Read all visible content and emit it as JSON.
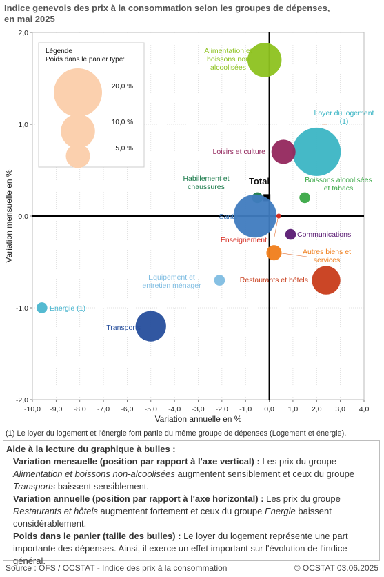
{
  "title_line1": "Indice genevois des prix à la consommation selon les groupes de dépenses,",
  "title_line2": "en mai 2025",
  "chart_data": {
    "type": "scatter",
    "xlabel": "Variation annuelle en %",
    "ylabel": "Variation mensuelle en %",
    "xlim": [
      -10,
      4
    ],
    "ylim": [
      -2,
      2
    ],
    "xticks": [
      "-10,0",
      "-9,0",
      "-8,0",
      "-7,0",
      "-6,0",
      "-5,0",
      "-4,0",
      "-3,0",
      "-2,0",
      "-1,0",
      "0,0",
      "1,0",
      "2,0",
      "3,0",
      "4,0"
    ],
    "yticks": [
      "2,0",
      "1,0",
      "0,0",
      "-1,0",
      "-2,0"
    ],
    "legend": {
      "title": "Légende",
      "subtitle": "Poids dans le panier type:",
      "entries": [
        {
          "label": "20,0 %",
          "weight": 20
        },
        {
          "label": "10,0 %",
          "weight": 10
        },
        {
          "label": "5,0 %",
          "weight": 5
        }
      ]
    },
    "points": [
      {
        "name": "Alimentation et boissons non alcoolisées",
        "x": -0.2,
        "y": 1.7,
        "weight": 10,
        "color": "#8dc21f"
      },
      {
        "name": "Loyer du logement (1)",
        "x": 2.0,
        "y": 0.7,
        "weight": 20,
        "color": "#3bb5c4"
      },
      {
        "name": "Loisirs et culture",
        "x": 0.6,
        "y": 0.7,
        "weight": 5,
        "color": "#93275d"
      },
      {
        "name": "Habillement et chaussures",
        "x": -0.5,
        "y": 0.2,
        "weight": 1,
        "color": "#1a7a4a"
      },
      {
        "name": "Boissons alcoolisées et tabacs",
        "x": 1.5,
        "y": 0.2,
        "weight": 1,
        "color": "#3aa846"
      },
      {
        "name": "Total",
        "x": -0.1,
        "y": 0.2,
        "weight": 0,
        "color": "#000000"
      },
      {
        "name": "Santé",
        "x": -0.6,
        "y": 0.0,
        "weight": 16,
        "color": "#3f7bbf"
      },
      {
        "name": "Enseignement",
        "x": 0.4,
        "y": 0.0,
        "weight": 0.2,
        "color": "#d62b20"
      },
      {
        "name": "Communications",
        "x": 0.9,
        "y": -0.2,
        "weight": 1,
        "color": "#5a1a73"
      },
      {
        "name": "Autres biens et services",
        "x": 0.2,
        "y": -0.4,
        "weight": 2,
        "color": "#f07d1a"
      },
      {
        "name": "Restaurants et hôtels",
        "x": 2.4,
        "y": -0.7,
        "weight": 7,
        "color": "#c83c1a"
      },
      {
        "name": "Equipement et entretien ménager",
        "x": -2.1,
        "y": -0.7,
        "weight": 1,
        "color": "#7fbde2"
      },
      {
        "name": "Energie (1)",
        "x": -9.6,
        "y": -1.0,
        "weight": 1,
        "color": "#4bb6cf"
      },
      {
        "name": "Transports",
        "x": -5.0,
        "y": -1.2,
        "weight": 8,
        "color": "#264e9c"
      }
    ],
    "labels": {
      "alim": [
        "Alimentation et",
        "boissons non",
        "alcoolisées"
      ],
      "loyer": [
        "Loyer du logement",
        "(1)"
      ],
      "loisirs": "Loisirs et culture",
      "habill": [
        "Habillement et",
        "chaussures"
      ],
      "total": "Total",
      "boissons": [
        "Boissons alcoolisées",
        "et tabacs"
      ],
      "sante": "Santé",
      "comm": "Communications",
      "enseig": "Enseignement",
      "autres": [
        "Autres biens et",
        "services"
      ],
      "equip": [
        "Equipement et",
        "entretien ménager"
      ],
      "resto": "Restaurants et hôtels",
      "energie": "Energie (1)",
      "transports": "Transports"
    }
  },
  "footnote": "(1) Le loyer du logement et l'énergie font partie du même groupe de dépenses (Logement et énergie).",
  "help": {
    "heading": "Aide à la lecture du graphique à bulles :",
    "p1_bold": "Variation mensuelle (position par rapport à l'axe vertical) :",
    "p1_a": " Les prix du groupe ",
    "p1_i1": "Alimentation et boissons non-alcoolisées",
    "p1_b": " augmentent sensiblement et ceux du groupe ",
    "p1_i2": "Transports",
    "p1_c": " baissent sensiblement.",
    "p2_bold": "Variation annuelle (position par rapport à l'axe horizontal) :",
    "p2_a": " Les prix du groupe ",
    "p2_i1": "Restaurants et hôtels",
    "p2_b": " augmentent fortement et ceux du groupe ",
    "p2_i2": "Energie",
    "p2_c": " baissent considérablement.",
    "p3_bold": "Poids dans le panier (taille des bulles) :",
    "p3_a": " Le loyer du logement représente une part importante des dépenses. Ainsi, il exerce un effet important sur l'évolution de l'indice général."
  },
  "source": "Source : OFS / OCSTAT - Indice des prix à la consommation",
  "copyright": "© OCSTAT 03.06.2025"
}
